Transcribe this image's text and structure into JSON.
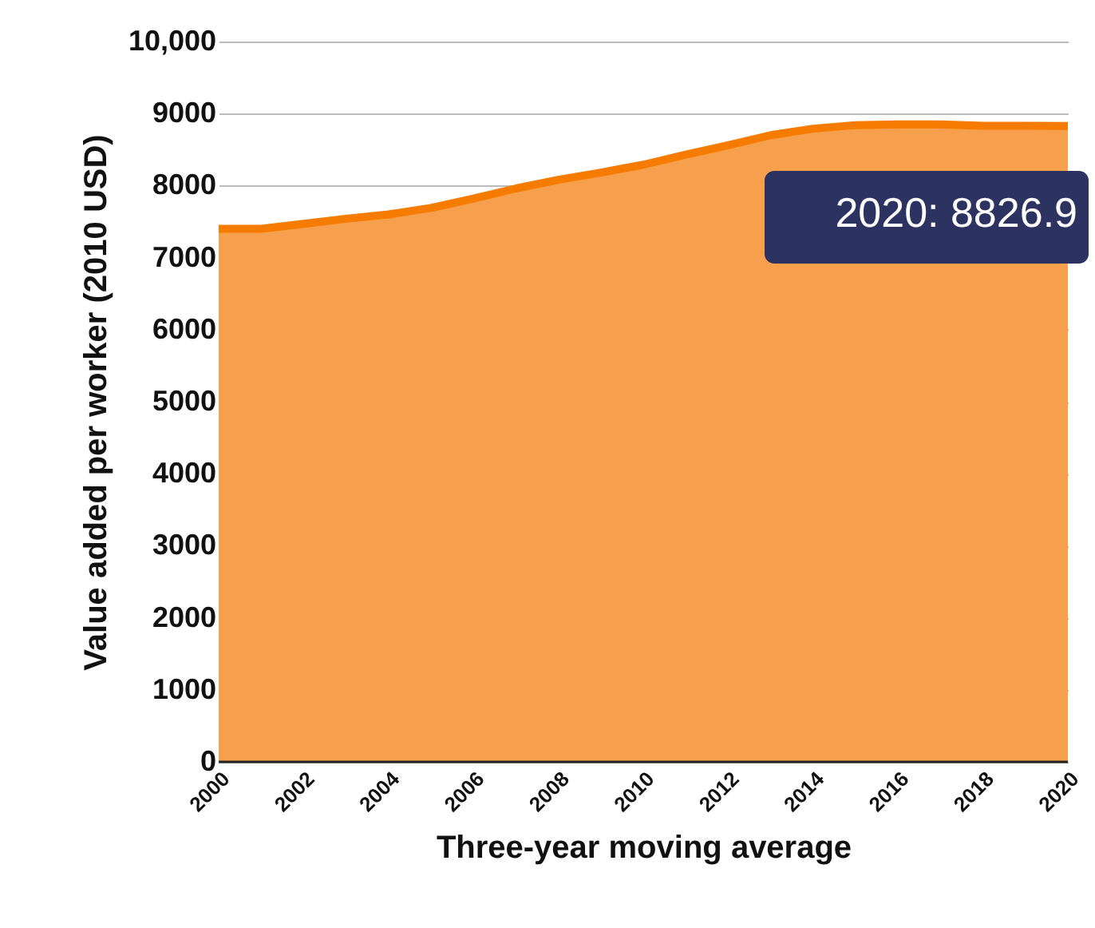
{
  "chart_data": {
    "type": "area",
    "x": [
      2000,
      2001,
      2002,
      2003,
      2004,
      2005,
      2006,
      2007,
      2008,
      2009,
      2010,
      2011,
      2012,
      2013,
      2014,
      2015,
      2016,
      2017,
      2018,
      2019,
      2020
    ],
    "series": [
      {
        "color": "#f57c00",
        "values": [
          7400,
          7400,
          7470,
          7540,
          7600,
          7690,
          7820,
          7960,
          8080,
          8180,
          8290,
          8430,
          8560,
          8700,
          8790,
          8840,
          8850,
          8850,
          8830,
          8830,
          8826.9
        ]
      }
    ],
    "xlabel": "Three-year  moving average",
    "ylabel": "Value added per worker (2010 USD)",
    "xlim": [
      2000,
      2020
    ],
    "xticks": [
      2000,
      2002,
      2004,
      2006,
      2008,
      2010,
      2012,
      2014,
      2016,
      2018,
      2020
    ],
    "ylim": [
      0,
      10000
    ],
    "yticks": [
      0,
      1000,
      2000,
      3000,
      4000,
      5000,
      6000,
      7000,
      8000,
      9000,
      {
        "value": 10000,
        "label": "10,000"
      }
    ],
    "grid": "y",
    "annotations": [
      {
        "text": "2020: 8826.9",
        "x": 2020,
        "y": 8826.9
      }
    ]
  }
}
